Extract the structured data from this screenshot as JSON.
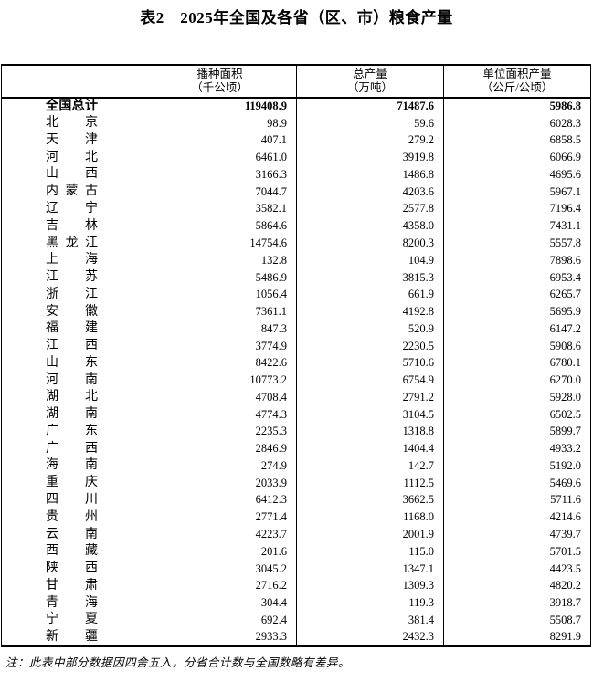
{
  "page": {
    "background": "#ffffff",
    "text_color": "#000000",
    "border_color": "#000000"
  },
  "title": "表2　2025年全国及各省（区、市）粮食产量",
  "table": {
    "columns": [
      {
        "line1": "",
        "line2": ""
      },
      {
        "line1": "播种面积",
        "line2": "（千公顷）"
      },
      {
        "line1": "总产量",
        "line2": "（万吨）"
      },
      {
        "line1": "单位面积产量",
        "line2": "（公斤/公顷）"
      }
    ],
    "rows": [
      {
        "name": "全国总计",
        "bold": true,
        "values": [
          "119408.9",
          "71487.6",
          "5986.8"
        ]
      },
      {
        "name": "北京",
        "bold": false,
        "values": [
          "98.9",
          "59.6",
          "6028.3"
        ]
      },
      {
        "name": "天津",
        "bold": false,
        "values": [
          "407.1",
          "279.2",
          "6858.5"
        ]
      },
      {
        "name": "河北",
        "bold": false,
        "values": [
          "6461.0",
          "3919.8",
          "6066.9"
        ]
      },
      {
        "name": "山西",
        "bold": false,
        "values": [
          "3166.3",
          "1486.8",
          "4695.6"
        ]
      },
      {
        "name": "内蒙古",
        "bold": false,
        "values": [
          "7044.7",
          "4203.6",
          "5967.1"
        ]
      },
      {
        "name": "辽宁",
        "bold": false,
        "values": [
          "3582.1",
          "2577.8",
          "7196.4"
        ]
      },
      {
        "name": "吉林",
        "bold": false,
        "values": [
          "5864.6",
          "4358.0",
          "7431.1"
        ]
      },
      {
        "name": "黑龙江",
        "bold": false,
        "values": [
          "14754.6",
          "8200.3",
          "5557.8"
        ]
      },
      {
        "name": "上海",
        "bold": false,
        "values": [
          "132.8",
          "104.9",
          "7898.6"
        ]
      },
      {
        "name": "江苏",
        "bold": false,
        "values": [
          "5486.9",
          "3815.3",
          "6953.4"
        ]
      },
      {
        "name": "浙江",
        "bold": false,
        "values": [
          "1056.4",
          "661.9",
          "6265.7"
        ]
      },
      {
        "name": "安徽",
        "bold": false,
        "values": [
          "7361.1",
          "4192.8",
          "5695.9"
        ]
      },
      {
        "name": "福建",
        "bold": false,
        "values": [
          "847.3",
          "520.9",
          "6147.2"
        ]
      },
      {
        "name": "江西",
        "bold": false,
        "values": [
          "3774.9",
          "2230.5",
          "5908.6"
        ]
      },
      {
        "name": "山东",
        "bold": false,
        "values": [
          "8422.6",
          "5710.6",
          "6780.1"
        ]
      },
      {
        "name": "河南",
        "bold": false,
        "values": [
          "10773.2",
          "6754.9",
          "6270.0"
        ]
      },
      {
        "name": "湖北",
        "bold": false,
        "values": [
          "4708.4",
          "2791.2",
          "5928.0"
        ]
      },
      {
        "name": "湖南",
        "bold": false,
        "values": [
          "4774.3",
          "3104.5",
          "6502.5"
        ]
      },
      {
        "name": "广东",
        "bold": false,
        "values": [
          "2235.3",
          "1318.8",
          "5899.7"
        ]
      },
      {
        "name": "广西",
        "bold": false,
        "values": [
          "2846.9",
          "1404.4",
          "4933.2"
        ]
      },
      {
        "name": "海南",
        "bold": false,
        "values": [
          "274.9",
          "142.7",
          "5192.0"
        ]
      },
      {
        "name": "重庆",
        "bold": false,
        "values": [
          "2033.9",
          "1112.5",
          "5469.6"
        ]
      },
      {
        "name": "四川",
        "bold": false,
        "values": [
          "6412.3",
          "3662.5",
          "5711.6"
        ]
      },
      {
        "name": "贵州",
        "bold": false,
        "values": [
          "2771.4",
          "1168.0",
          "4214.6"
        ]
      },
      {
        "name": "云南",
        "bold": false,
        "values": [
          "4223.7",
          "2001.9",
          "4739.7"
        ]
      },
      {
        "name": "西藏",
        "bold": false,
        "values": [
          "201.6",
          "115.0",
          "5701.5"
        ]
      },
      {
        "name": "陕西",
        "bold": false,
        "values": [
          "3045.2",
          "1347.1",
          "4423.5"
        ]
      },
      {
        "name": "甘肃",
        "bold": false,
        "values": [
          "2716.2",
          "1309.3",
          "4820.2"
        ]
      },
      {
        "name": "青海",
        "bold": false,
        "values": [
          "304.4",
          "119.3",
          "3918.7"
        ]
      },
      {
        "name": "宁夏",
        "bold": false,
        "values": [
          "692.4",
          "381.4",
          "5508.7"
        ]
      },
      {
        "name": "新疆",
        "bold": false,
        "values": [
          "2933.3",
          "2432.3",
          "8291.9"
        ]
      }
    ]
  },
  "note": "注：此表中部分数据因四舍五入，分省合计数与全国数略有差异。"
}
